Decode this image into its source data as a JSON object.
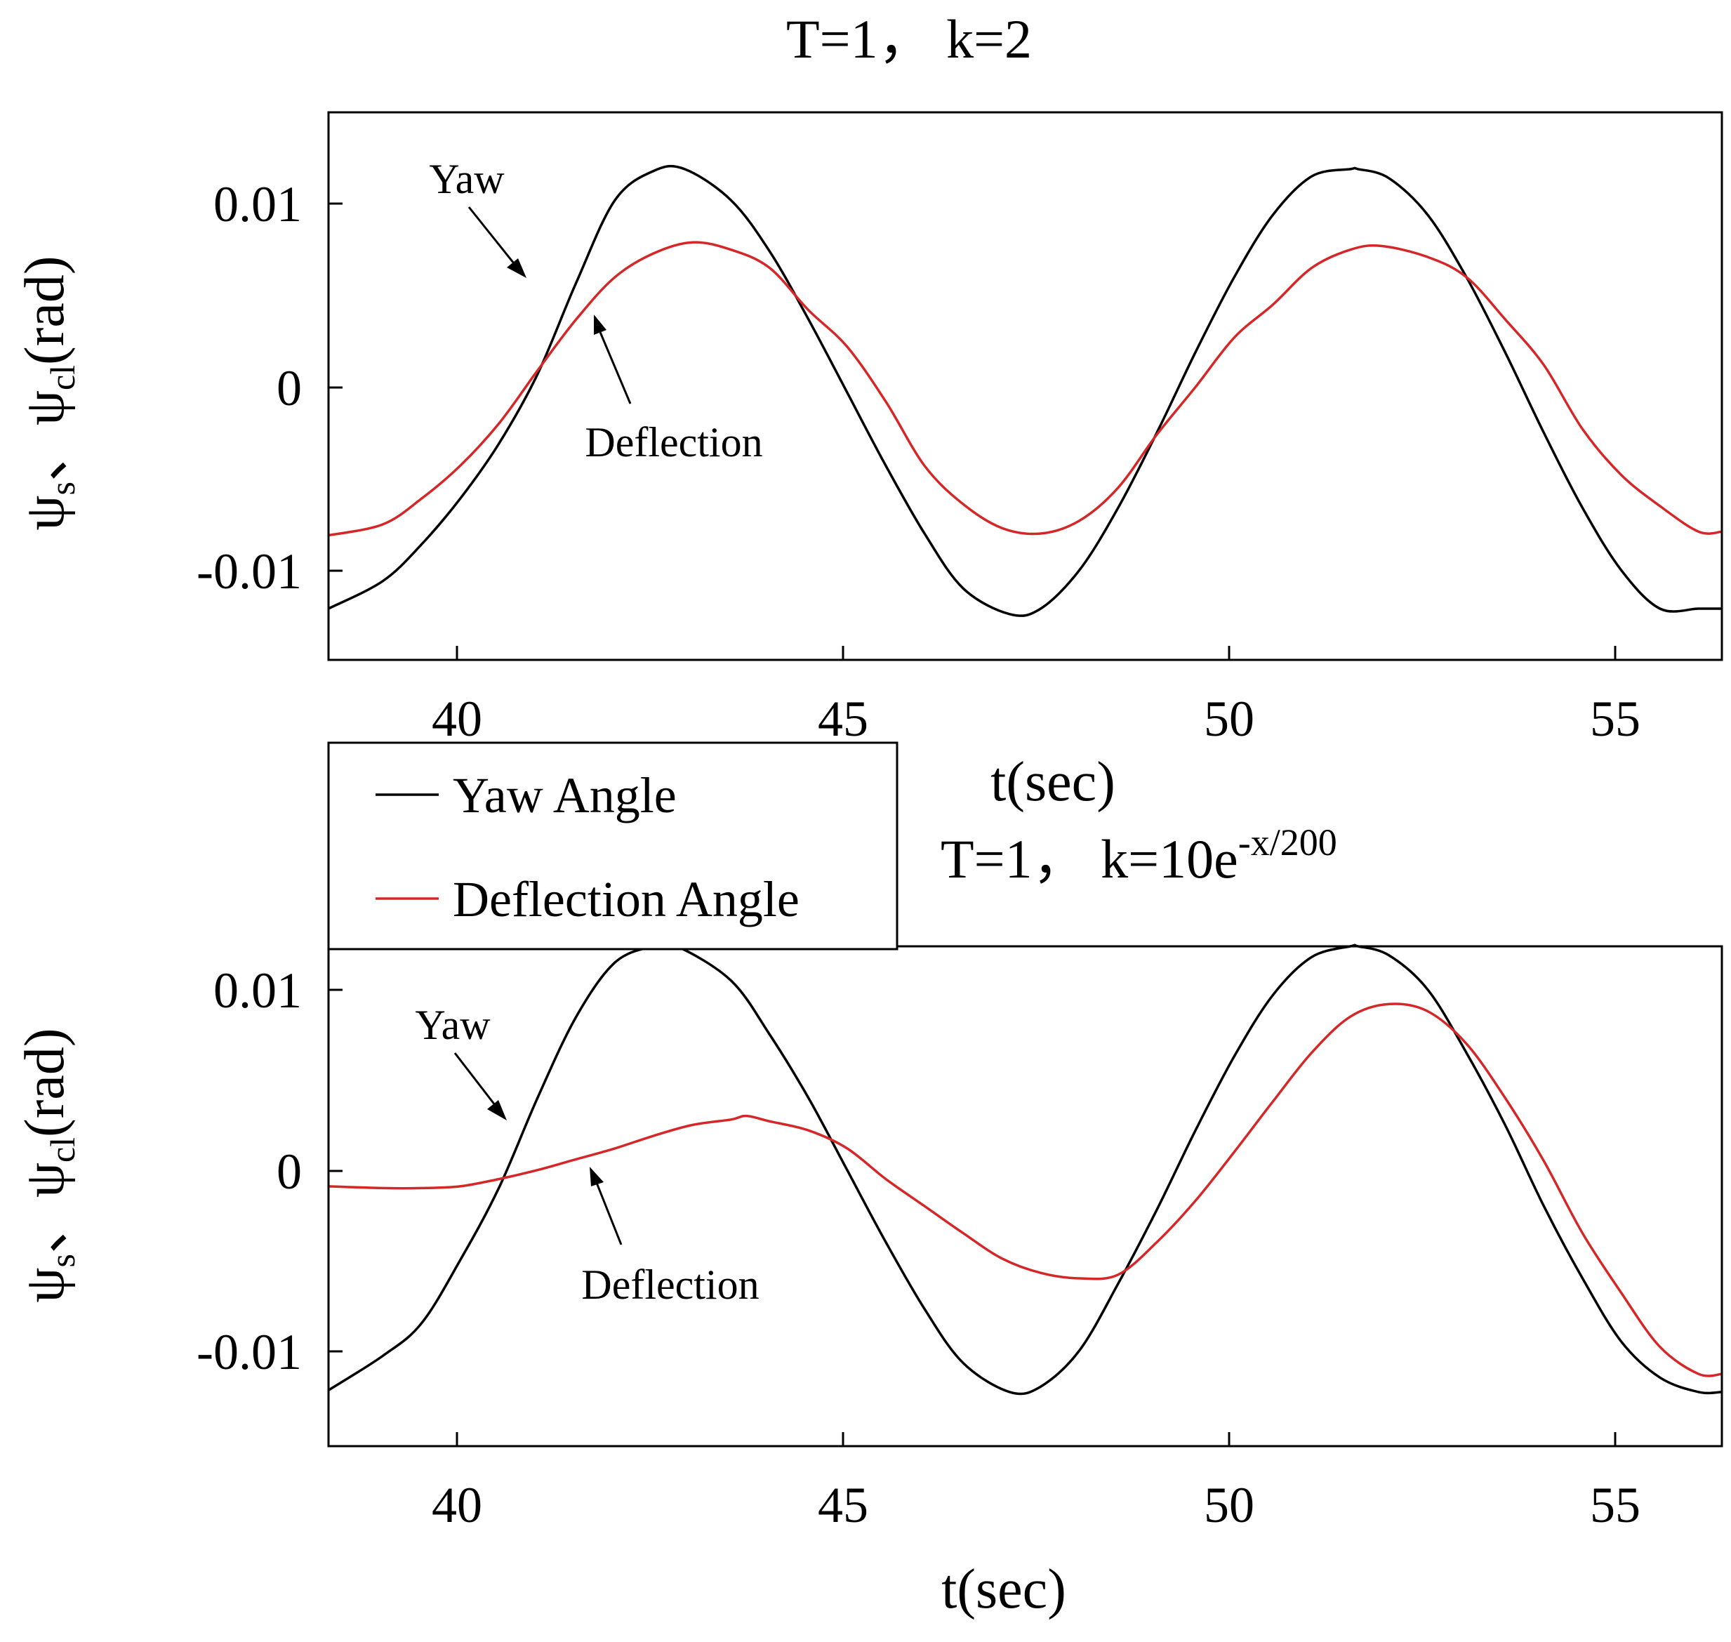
{
  "chart_data": [
    {
      "type": "line",
      "title": "T=1， k=2",
      "xlabel": "t(sec)",
      "ylabel_main": "ψ",
      "ylabel_sub1": "s",
      "ylabel_sep": "、",
      "ylabel_sub2": "cl",
      "ylabel_unit": "(rad)",
      "xlim": [
        38.3,
        56.3
      ],
      "ylim": [
        -0.0146,
        0.0153
      ],
      "xticks": [
        40,
        45,
        50,
        55
      ],
      "xtick_labels": [
        "40",
        "45",
        "50",
        "55"
      ],
      "yticks": [
        0.01,
        0,
        -0.01
      ],
      "ytick_labels": [
        "0.01",
        "0",
        "-0.01"
      ],
      "annotations": [
        {
          "text": "Yaw",
          "target": [
            40.9,
            0.0062
          ]
        },
        {
          "text": "Deflection",
          "target": [
            41.8,
            0.0043
          ]
        }
      ],
      "series": [
        {
          "name": "Yaw Angle",
          "color": "#000000",
          "x": [
            38.3,
            39.0,
            39.5,
            40.0,
            40.5,
            41.0,
            41.5,
            42.0,
            42.5,
            42.9,
            43.5,
            44.0,
            44.5,
            45.0,
            45.5,
            46.0,
            46.5,
            47.1,
            47.5,
            48.0,
            48.5,
            49.0,
            49.5,
            50.0,
            50.5,
            51.0,
            51.5,
            51.6,
            52.0,
            52.5,
            53.0,
            53.5,
            54.0,
            54.5,
            55.0,
            55.5,
            56.0,
            56.3
          ],
          "values": [
            -0.0118,
            -0.0103,
            -0.0083,
            -0.0058,
            -0.0028,
            0.001,
            0.006,
            0.0105,
            0.0121,
            0.0122,
            0.0105,
            0.0077,
            0.004,
            0.0,
            -0.004,
            -0.0077,
            -0.0107,
            -0.0121,
            -0.0118,
            -0.0097,
            -0.0063,
            -0.0022,
            0.0022,
            0.0063,
            0.0097,
            0.0118,
            0.0122,
            0.0122,
            0.0117,
            0.0097,
            0.0063,
            0.0022,
            -0.0022,
            -0.0063,
            -0.0097,
            -0.0118,
            -0.0118,
            -0.0118
          ]
        },
        {
          "name": "Deflection Angle",
          "color": "#d62728",
          "x": [
            38.3,
            39.0,
            39.5,
            40.0,
            40.5,
            41.0,
            41.5,
            42.0,
            42.5,
            43.0,
            43.5,
            44.0,
            44.5,
            45.0,
            45.5,
            46.0,
            46.5,
            47.0,
            47.5,
            48.0,
            48.5,
            49.0,
            49.5,
            50.0,
            50.5,
            51.0,
            51.5,
            51.9,
            52.5,
            53.0,
            53.5,
            54.0,
            54.5,
            55.0,
            55.5,
            56.0,
            56.3
          ],
          "values": [
            -0.0078,
            -0.0072,
            -0.0058,
            -0.004,
            -0.0017,
            0.0012,
            0.004,
            0.0063,
            0.0076,
            0.0082,
            0.0078,
            0.0068,
            0.0045,
            0.0025,
            -0.0005,
            -0.004,
            -0.0061,
            -0.0074,
            -0.0077,
            -0.007,
            -0.0052,
            -0.0023,
            0.0003,
            0.003,
            0.0048,
            0.0068,
            0.0078,
            0.008,
            0.0074,
            0.0063,
            0.004,
            0.0015,
            -0.002,
            -0.0045,
            -0.0062,
            -0.0076,
            -0.0076
          ]
        }
      ]
    },
    {
      "type": "line",
      "title_main": "T=1， k=10e",
      "title_sup": "-x/200",
      "xlabel": "t(sec)",
      "ylabel_main": "ψ",
      "ylabel_sub1": "s",
      "ylabel_sep": "、",
      "ylabel_sub2": "cl",
      "ylabel_unit": "(rad)",
      "xlim": [
        38.3,
        56.3
      ],
      "ylim": [
        -0.0153,
        0.0124
      ],
      "xticks": [
        40,
        45,
        50,
        55
      ],
      "xtick_labels": [
        "40",
        "45",
        "50",
        "55"
      ],
      "yticks": [
        0.01,
        0,
        -0.01
      ],
      "ytick_labels": [
        "0.01",
        "0",
        "-0.01"
      ],
      "annotations": [
        {
          "text": "Yaw",
          "target": [
            40.6,
            0.0026
          ]
        },
        {
          "text": "Deflection",
          "target": [
            41.7,
            0.0006
          ]
        }
      ],
      "series": [
        {
          "name": "Yaw Angle",
          "color": "#000000",
          "x": [
            38.3,
            39.0,
            39.5,
            40.0,
            40.5,
            41.0,
            41.5,
            42.0,
            42.5,
            42.8,
            43.5,
            44.0,
            44.5,
            45.0,
            45.5,
            46.0,
            46.5,
            47.1,
            47.5,
            48.0,
            48.5,
            49.0,
            49.5,
            50.0,
            50.5,
            51.0,
            51.5,
            51.6,
            52.0,
            52.5,
            53.0,
            53.5,
            54.0,
            54.5,
            55.0,
            55.5,
            56.0,
            56.3
          ],
          "values": [
            -0.0122,
            -0.0103,
            -0.0085,
            -0.005,
            -0.001,
            0.004,
            0.0085,
            0.0115,
            0.0124,
            0.0124,
            0.0105,
            0.0075,
            0.004,
            0.0,
            -0.004,
            -0.0077,
            -0.0107,
            -0.0123,
            -0.012,
            -0.01,
            -0.0063,
            -0.0022,
            0.0022,
            0.0063,
            0.0097,
            0.0118,
            0.0124,
            0.0124,
            0.0119,
            0.01,
            0.0065,
            0.0025,
            -0.002,
            -0.006,
            -0.0095,
            -0.0115,
            -0.0123,
            -0.0123
          ]
        },
        {
          "name": "Deflection Angle",
          "color": "#d62728",
          "x": [
            38.3,
            39.0,
            39.5,
            40.0,
            40.5,
            41.0,
            41.5,
            42.0,
            42.5,
            43.0,
            43.5,
            43.7,
            44.0,
            44.5,
            45.0,
            45.5,
            46.0,
            46.5,
            47.0,
            47.5,
            48.0,
            48.5,
            49.0,
            49.5,
            50.0,
            50.5,
            51.0,
            51.5,
            52.0,
            52.5,
            53.0,
            53.5,
            54.0,
            54.5,
            55.0,
            55.5,
            56.0,
            56.3
          ],
          "values": [
            -0.0009,
            -0.001,
            -0.001,
            -0.0009,
            -0.0005,
            0.0,
            0.0006,
            0.0012,
            0.0019,
            0.0025,
            0.0028,
            0.003,
            0.0027,
            0.0022,
            0.0012,
            -0.0005,
            -0.002,
            -0.0035,
            -0.0049,
            -0.0057,
            -0.006,
            -0.0058,
            -0.004,
            -0.0017,
            0.001,
            0.0038,
            0.0065,
            0.0085,
            0.0092,
            0.0088,
            0.007,
            0.004,
            0.0005,
            -0.0035,
            -0.0068,
            -0.0098,
            -0.0113,
            -0.0113
          ]
        }
      ]
    }
  ],
  "legend": {
    "items": [
      {
        "label": "Yaw Angle",
        "color": "#000000"
      },
      {
        "label": "Deflection Angle",
        "color": "#d62728"
      }
    ]
  }
}
